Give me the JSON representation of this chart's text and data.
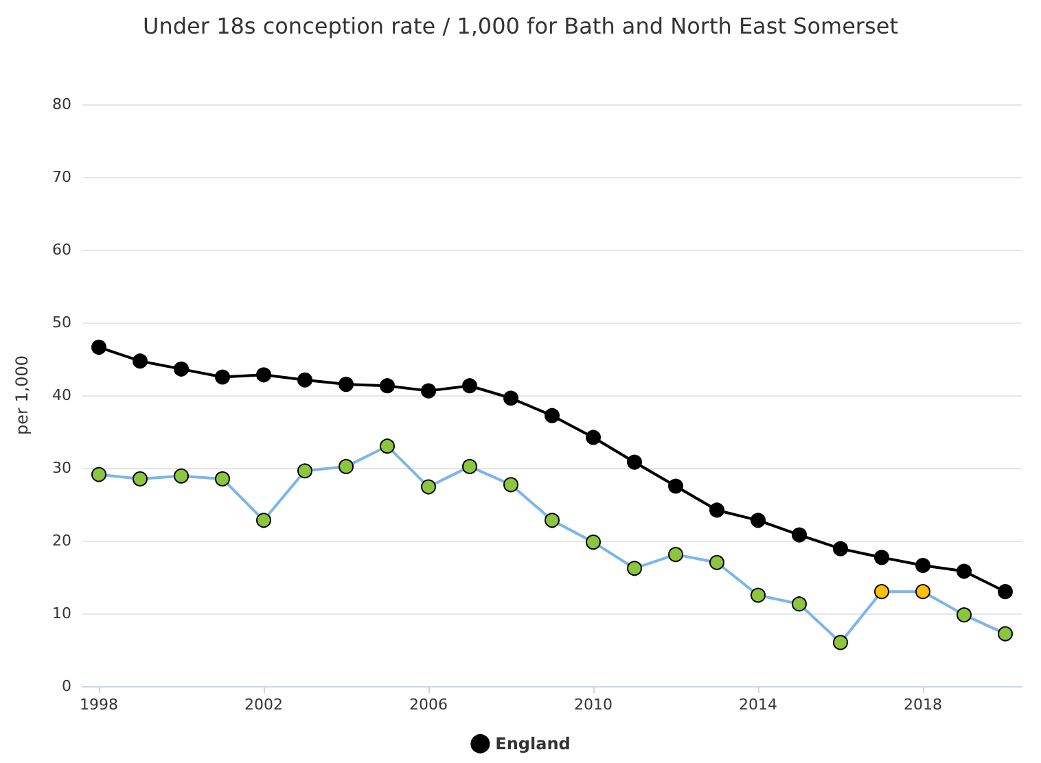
{
  "chart_data": {
    "type": "line",
    "title": "Under 18s conception rate / 1,000 for Bath and North East Somerset",
    "ylabel": "per 1,000",
    "x": [
      1998,
      1999,
      2000,
      2001,
      2002,
      2003,
      2004,
      2005,
      2006,
      2007,
      2008,
      2009,
      2010,
      2011,
      2012,
      2013,
      2014,
      2015,
      2016,
      2017,
      2018,
      2019,
      2020
    ],
    "series": [
      {
        "color": "#7cb5ec",
        "colors": [
          "#8cc63f",
          "#8cc63f",
          "#8cc63f",
          "#8cc63f",
          "#8cc63f",
          "#8cc63f",
          "#8cc63f",
          "#8cc63f",
          "#8cc63f",
          "#8cc63f",
          "#8cc63f",
          "#8cc63f",
          "#8cc63f",
          "#8cc63f",
          "#8cc63f",
          "#8cc63f",
          "#8cc63f",
          "#8cc63f",
          "#8cc63f",
          "#ffc000",
          "#ffc000",
          "#8cc63f",
          "#8cc63f"
        ],
        "values": [
          29.1,
          28.5,
          28.9,
          28.5,
          22.8,
          29.6,
          30.2,
          33.0,
          27.4,
          30.2,
          27.7,
          22.8,
          19.8,
          16.2,
          18.1,
          17.0,
          12.5,
          11.3,
          6.0,
          13.0,
          13.0,
          9.8,
          7.2
        ]
      },
      {
        "name": "England",
        "color": "#000000",
        "values": [
          46.6,
          44.7,
          43.6,
          42.5,
          42.8,
          42.1,
          41.5,
          41.3,
          40.6,
          41.3,
          39.6,
          37.2,
          34.2,
          30.8,
          27.5,
          24.2,
          22.8,
          20.8,
          18.9,
          17.7,
          16.6,
          15.8,
          13.0
        ]
      }
    ],
    "xlim": [
      1997.6,
      2020.4
    ],
    "xticks": [
      1998,
      2002,
      2006,
      2010,
      2014,
      2018
    ],
    "ylim": [
      0,
      80
    ],
    "yticks": [
      0,
      10,
      20,
      30,
      40,
      50,
      60,
      70,
      80
    ],
    "grid": "y",
    "legend": "bottom",
    "marker": "circle",
    "line_style": "solid"
  }
}
